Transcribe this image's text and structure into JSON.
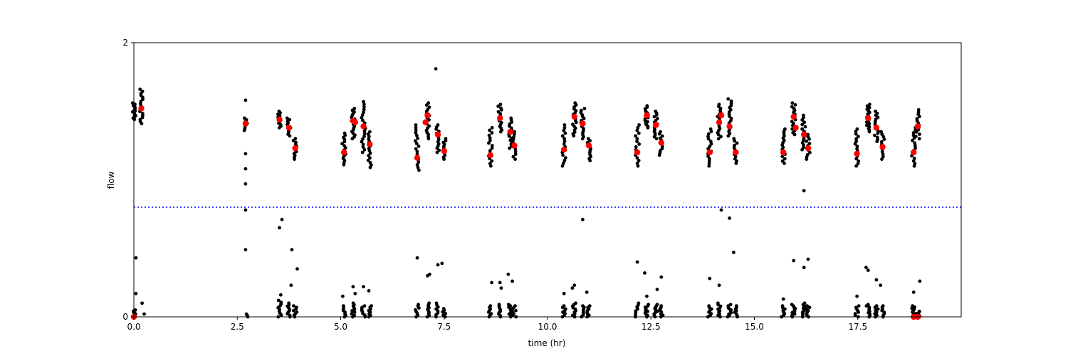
{
  "chart_data": {
    "type": "scatter",
    "xlabel": "time (hr)",
    "ylabel": "flow",
    "xlim": [
      0,
      20
    ],
    "ylim": [
      0,
      2
    ],
    "xticks": [
      0,
      2.5,
      5,
      7.5,
      10,
      12.5,
      15,
      17.5
    ],
    "xtick_labels": [
      "0.0",
      "2.5",
      "5.0",
      "7.5",
      "10.0",
      "12.5",
      "15.0",
      "17.5"
    ],
    "yticks": [
      0,
      2
    ],
    "ytick_labels": [
      "0",
      "2"
    ],
    "grid": false,
    "threshold_line": {
      "y": 0.8,
      "color": "#0000ff",
      "style": "dotted"
    },
    "colors": {
      "raw": "#000000",
      "mean": "#ff0000"
    },
    "raw_clusters": [
      {
        "x": 0.0,
        "y_low": 1.44,
        "y_high": 1.56,
        "n": 14
      },
      {
        "x": 0.18,
        "y_low": 1.41,
        "y_high": 1.66,
        "n": 18
      },
      {
        "x": 2.7,
        "y_low": 1.36,
        "y_high": 1.45,
        "n": 8
      },
      {
        "x": 3.52,
        "y_low": 1.38,
        "y_high": 1.5,
        "n": 12
      },
      {
        "x": 3.75,
        "y_low": 1.32,
        "y_high": 1.45,
        "n": 12
      },
      {
        "x": 3.9,
        "y_low": 1.15,
        "y_high": 1.3,
        "n": 12
      },
      {
        "x": 5.08,
        "y_low": 1.11,
        "y_high": 1.34,
        "n": 16
      },
      {
        "x": 5.3,
        "y_low": 1.3,
        "y_high": 1.52,
        "n": 18
      },
      {
        "x": 5.55,
        "y_low": 1.2,
        "y_high": 1.57,
        "n": 20
      },
      {
        "x": 5.7,
        "y_low": 1.09,
        "y_high": 1.35,
        "n": 16
      },
      {
        "x": 6.85,
        "y_low": 1.07,
        "y_high": 1.4,
        "n": 18
      },
      {
        "x": 7.1,
        "y_low": 1.3,
        "y_high": 1.56,
        "n": 18
      },
      {
        "x": 7.35,
        "y_low": 1.2,
        "y_high": 1.4,
        "n": 14
      },
      {
        "x": 7.5,
        "y_low": 1.15,
        "y_high": 1.3,
        "n": 12
      },
      {
        "x": 8.62,
        "y_low": 1.1,
        "y_high": 1.38,
        "n": 16
      },
      {
        "x": 8.85,
        "y_low": 1.35,
        "y_high": 1.55,
        "n": 16
      },
      {
        "x": 9.1,
        "y_low": 1.23,
        "y_high": 1.45,
        "n": 16
      },
      {
        "x": 9.2,
        "y_low": 1.15,
        "y_high": 1.35,
        "n": 12
      },
      {
        "x": 10.4,
        "y_low": 1.1,
        "y_high": 1.4,
        "n": 16
      },
      {
        "x": 10.65,
        "y_low": 1.32,
        "y_high": 1.56,
        "n": 18
      },
      {
        "x": 10.85,
        "y_low": 1.3,
        "y_high": 1.52,
        "n": 16
      },
      {
        "x": 11.0,
        "y_low": 1.14,
        "y_high": 1.3,
        "n": 12
      },
      {
        "x": 12.17,
        "y_low": 1.1,
        "y_high": 1.4,
        "n": 16
      },
      {
        "x": 12.4,
        "y_low": 1.38,
        "y_high": 1.54,
        "n": 16
      },
      {
        "x": 12.62,
        "y_low": 1.3,
        "y_high": 1.5,
        "n": 16
      },
      {
        "x": 12.75,
        "y_low": 1.18,
        "y_high": 1.35,
        "n": 12
      },
      {
        "x": 13.92,
        "y_low": 1.1,
        "y_high": 1.37,
        "n": 16
      },
      {
        "x": 14.15,
        "y_low": 1.3,
        "y_high": 1.55,
        "n": 18
      },
      {
        "x": 14.4,
        "y_low": 1.32,
        "y_high": 1.59,
        "n": 18
      },
      {
        "x": 14.55,
        "y_low": 1.12,
        "y_high": 1.3,
        "n": 12
      },
      {
        "x": 15.7,
        "y_low": 1.12,
        "y_high": 1.37,
        "n": 16
      },
      {
        "x": 15.95,
        "y_low": 1.33,
        "y_high": 1.56,
        "n": 18
      },
      {
        "x": 16.2,
        "y_low": 1.22,
        "y_high": 1.47,
        "n": 16
      },
      {
        "x": 16.3,
        "y_low": 1.15,
        "y_high": 1.33,
        "n": 12
      },
      {
        "x": 17.48,
        "y_low": 1.1,
        "y_high": 1.37,
        "n": 16
      },
      {
        "x": 17.75,
        "y_low": 1.35,
        "y_high": 1.55,
        "n": 18
      },
      {
        "x": 17.95,
        "y_low": 1.28,
        "y_high": 1.5,
        "n": 16
      },
      {
        "x": 18.1,
        "y_low": 1.15,
        "y_high": 1.35,
        "n": 12
      },
      {
        "x": 18.85,
        "y_low": 1.1,
        "y_high": 1.38,
        "n": 16
      },
      {
        "x": 18.95,
        "y_low": 1.3,
        "y_high": 1.51,
        "n": 14
      }
    ],
    "low_clusters": [
      {
        "x": 0.0,
        "y_low": 0.0,
        "y_high": 0.05,
        "n": 8
      },
      {
        "x": 2.72,
        "y_low": 0.0,
        "y_high": 0.02,
        "n": 3
      },
      {
        "x": 3.52,
        "y_low": 0.0,
        "y_high": 0.12,
        "n": 10
      },
      {
        "x": 3.75,
        "y_low": 0.0,
        "y_high": 0.1,
        "n": 10
      },
      {
        "x": 3.9,
        "y_low": 0.0,
        "y_high": 0.08,
        "n": 8
      },
      {
        "x": 5.08,
        "y_low": 0.0,
        "y_high": 0.08,
        "n": 8
      },
      {
        "x": 5.3,
        "y_low": 0.0,
        "y_high": 0.1,
        "n": 10
      },
      {
        "x": 5.55,
        "y_low": 0.0,
        "y_high": 0.08,
        "n": 8
      },
      {
        "x": 5.7,
        "y_low": 0.0,
        "y_high": 0.08,
        "n": 8
      },
      {
        "x": 6.85,
        "y_low": 0.0,
        "y_high": 0.09,
        "n": 8
      },
      {
        "x": 7.1,
        "y_low": 0.0,
        "y_high": 0.1,
        "n": 10
      },
      {
        "x": 7.35,
        "y_low": 0.0,
        "y_high": 0.1,
        "n": 8
      },
      {
        "x": 7.5,
        "y_low": 0.0,
        "y_high": 0.06,
        "n": 6
      },
      {
        "x": 8.62,
        "y_low": 0.0,
        "y_high": 0.08,
        "n": 8
      },
      {
        "x": 8.85,
        "y_low": 0.0,
        "y_high": 0.09,
        "n": 10
      },
      {
        "x": 9.1,
        "y_low": 0.0,
        "y_high": 0.09,
        "n": 10
      },
      {
        "x": 9.2,
        "y_low": 0.0,
        "y_high": 0.08,
        "n": 8
      },
      {
        "x": 10.4,
        "y_low": 0.0,
        "y_high": 0.08,
        "n": 8
      },
      {
        "x": 10.65,
        "y_low": 0.0,
        "y_high": 0.1,
        "n": 10
      },
      {
        "x": 10.85,
        "y_low": 0.0,
        "y_high": 0.08,
        "n": 8
      },
      {
        "x": 11.0,
        "y_low": 0.0,
        "y_high": 0.08,
        "n": 8
      },
      {
        "x": 12.17,
        "y_low": 0.0,
        "y_high": 0.1,
        "n": 8
      },
      {
        "x": 12.4,
        "y_low": 0.0,
        "y_high": 0.09,
        "n": 10
      },
      {
        "x": 12.62,
        "y_low": 0.0,
        "y_high": 0.09,
        "n": 10
      },
      {
        "x": 12.75,
        "y_low": 0.0,
        "y_high": 0.08,
        "n": 8
      },
      {
        "x": 13.92,
        "y_low": 0.0,
        "y_high": 0.08,
        "n": 8
      },
      {
        "x": 14.15,
        "y_low": 0.0,
        "y_high": 0.1,
        "n": 10
      },
      {
        "x": 14.4,
        "y_low": 0.0,
        "y_high": 0.09,
        "n": 10
      },
      {
        "x": 14.55,
        "y_low": 0.0,
        "y_high": 0.08,
        "n": 8
      },
      {
        "x": 15.7,
        "y_low": 0.0,
        "y_high": 0.08,
        "n": 8
      },
      {
        "x": 15.95,
        "y_low": 0.0,
        "y_high": 0.09,
        "n": 10
      },
      {
        "x": 16.2,
        "y_low": 0.0,
        "y_high": 0.1,
        "n": 10
      },
      {
        "x": 16.3,
        "y_low": 0.0,
        "y_high": 0.08,
        "n": 8
      },
      {
        "x": 17.48,
        "y_low": 0.0,
        "y_high": 0.08,
        "n": 8
      },
      {
        "x": 17.75,
        "y_low": 0.0,
        "y_high": 0.09,
        "n": 10
      },
      {
        "x": 17.95,
        "y_low": 0.0,
        "y_high": 0.08,
        "n": 8
      },
      {
        "x": 18.1,
        "y_low": 0.0,
        "y_high": 0.08,
        "n": 8
      },
      {
        "x": 18.85,
        "y_low": 0.0,
        "y_high": 0.08,
        "n": 10
      },
      {
        "x": 18.95,
        "y_low": 0.0,
        "y_high": 0.04,
        "n": 6
      }
    ],
    "outliers": [
      [
        0.05,
        0.43
      ],
      [
        0.05,
        0.17
      ],
      [
        0.2,
        0.1
      ],
      [
        0.25,
        0.02
      ],
      [
        2.7,
        1.58
      ],
      [
        2.7,
        1.19
      ],
      [
        2.7,
        1.08
      ],
      [
        2.7,
        0.97
      ],
      [
        2.7,
        0.78
      ],
      [
        2.7,
        0.49
      ],
      [
        3.52,
        0.65
      ],
      [
        3.58,
        0.71
      ],
      [
        3.55,
        0.16
      ],
      [
        3.82,
        0.49
      ],
      [
        3.8,
        0.23
      ],
      [
        3.95,
        0.35
      ],
      [
        5.05,
        0.15
      ],
      [
        5.3,
        0.22
      ],
      [
        5.35,
        0.17
      ],
      [
        5.55,
        0.22
      ],
      [
        5.68,
        0.19
      ],
      [
        6.85,
        0.43
      ],
      [
        7.1,
        0.3
      ],
      [
        7.15,
        0.31
      ],
      [
        7.35,
        0.38
      ],
      [
        7.3,
        1.81
      ],
      [
        7.45,
        0.39
      ],
      [
        8.65,
        0.25
      ],
      [
        8.88,
        0.21
      ],
      [
        8.85,
        0.25
      ],
      [
        9.05,
        0.31
      ],
      [
        9.15,
        0.26
      ],
      [
        10.4,
        0.17
      ],
      [
        10.6,
        0.21
      ],
      [
        10.65,
        0.23
      ],
      [
        10.85,
        0.71
      ],
      [
        10.95,
        0.18
      ],
      [
        12.17,
        0.4
      ],
      [
        12.35,
        0.32
      ],
      [
        12.4,
        0.15
      ],
      [
        12.65,
        0.2
      ],
      [
        12.75,
        0.29
      ],
      [
        13.92,
        0.28
      ],
      [
        14.15,
        0.23
      ],
      [
        14.2,
        0.78
      ],
      [
        14.4,
        0.72
      ],
      [
        14.5,
        0.47
      ],
      [
        15.7,
        0.13
      ],
      [
        15.95,
        0.41
      ],
      [
        16.2,
        0.92
      ],
      [
        16.2,
        0.36
      ],
      [
        16.3,
        0.42
      ],
      [
        17.48,
        0.15
      ],
      [
        17.7,
        0.36
      ],
      [
        17.75,
        0.34
      ],
      [
        17.95,
        0.27
      ],
      [
        18.05,
        0.23
      ],
      [
        18.85,
        0.18
      ],
      [
        19.0,
        0.26
      ]
    ],
    "means": [
      [
        0.18,
        1.52
      ],
      [
        2.7,
        1.41
      ],
      [
        3.52,
        1.44
      ],
      [
        3.75,
        1.38
      ],
      [
        3.9,
        1.23
      ],
      [
        5.08,
        1.2
      ],
      [
        5.3,
        1.43
      ],
      [
        5.35,
        1.42
      ],
      [
        5.55,
        1.39
      ],
      [
        5.7,
        1.26
      ],
      [
        6.85,
        1.16
      ],
      [
        7.05,
        1.42
      ],
      [
        7.1,
        1.47
      ],
      [
        7.35,
        1.33
      ],
      [
        7.5,
        1.21
      ],
      [
        8.62,
        1.18
      ],
      [
        8.85,
        1.45
      ],
      [
        9.1,
        1.35
      ],
      [
        9.2,
        1.25
      ],
      [
        10.4,
        1.22
      ],
      [
        10.65,
        1.46
      ],
      [
        10.85,
        1.41
      ],
      [
        11.0,
        1.25
      ],
      [
        12.17,
        1.2
      ],
      [
        12.4,
        1.47
      ],
      [
        12.62,
        1.4
      ],
      [
        12.75,
        1.27
      ],
      [
        13.92,
        1.2
      ],
      [
        14.15,
        1.42
      ],
      [
        14.2,
        1.47
      ],
      [
        14.4,
        1.39
      ],
      [
        14.55,
        1.2
      ],
      [
        15.7,
        1.2
      ],
      [
        15.95,
        1.46
      ],
      [
        16.0,
        1.38
      ],
      [
        16.2,
        1.33
      ],
      [
        16.3,
        1.23
      ],
      [
        17.48,
        1.19
      ],
      [
        17.75,
        1.45
      ],
      [
        17.95,
        1.38
      ],
      [
        18.1,
        1.24
      ],
      [
        18.85,
        1.2
      ],
      [
        18.95,
        1.39
      ],
      [
        0.0,
        0.0
      ],
      [
        18.85,
        0.0
      ],
      [
        18.95,
        0.0
      ]
    ]
  }
}
